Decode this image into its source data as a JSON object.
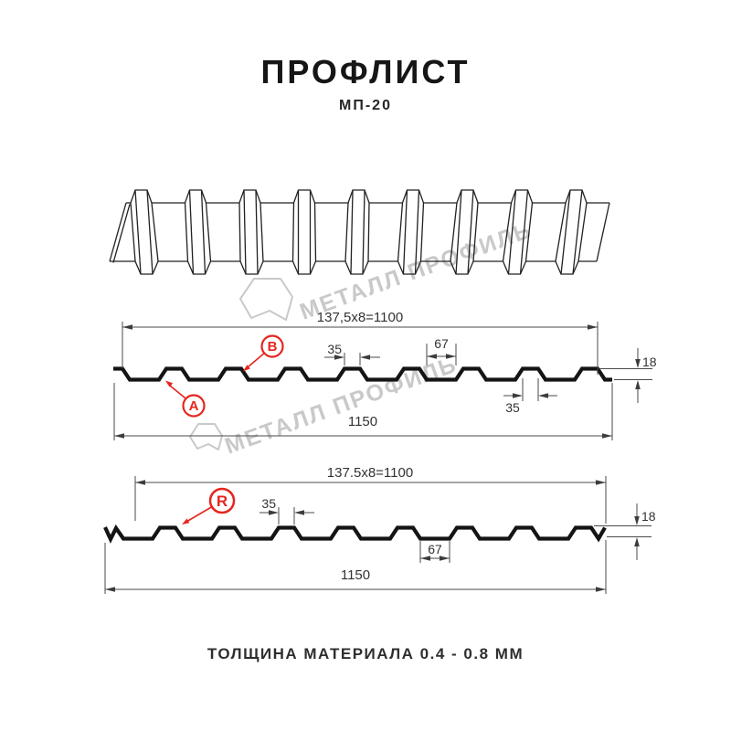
{
  "header": {
    "title": "ПРОФЛИСТ",
    "subtitle": "МП-20"
  },
  "watermark": {
    "text": "МЕТАЛЛ ПРОФИЛЬ",
    "color": "#c9c9c9",
    "logo_icon": "metall-profil-logo"
  },
  "colors": {
    "accent_red": "#e5261f",
    "profile_line": "#141414",
    "dim_line": "#4a4a4a",
    "watermark_gray": "#c9c9c9"
  },
  "section_top": {
    "labels": {
      "a": "A",
      "b": "B"
    },
    "dims": {
      "pitch": "137,5x8=1100",
      "rib_top_width": "35",
      "valley_width": "67",
      "height": "18",
      "rib_bottom_width": "35",
      "overall_width": "1150"
    }
  },
  "section_bottom": {
    "labels": {
      "r": "R"
    },
    "dims": {
      "pitch": "137.5x8=1100",
      "rib_top_width": "35",
      "valley_width": "67",
      "height": "18",
      "overall_width": "1150"
    }
  },
  "footer": {
    "note": "ТОЛЩИНА МАТЕРИАЛА 0.4 - 0.8 ММ"
  }
}
